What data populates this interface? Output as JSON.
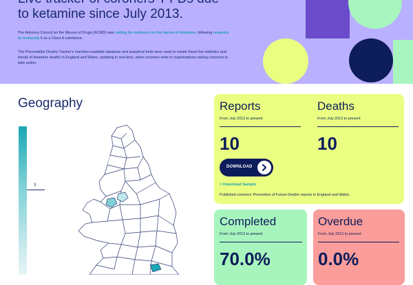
{
  "hero": {
    "title": "Live tracker of coroners' PFDs due to ketamine since July 2013.",
    "para1": {
      "part1": "The Advisory Council on the Misuse of Drugs (ACMD) was ",
      "link1": "calling for evidence on the harms of ketamine",
      "part2": ", following ",
      "link2": "requests to reclassify",
      "part3": " it as a Class A substance."
    },
    "para2": "The Preventable Deaths Tracker's machine-readable database and analytical tools were used to create these live statistics and trends of ketamine deaths in England and Wales, updating in real-time, when coroners write to organisations raising concerns to take action."
  },
  "geography": {
    "title": "Geography",
    "legend_max_label": "3"
  },
  "cards": {
    "reports": {
      "label": "Reports",
      "sub": "From July 2013 to present",
      "value": "10"
    },
    "deaths": {
      "label": "Deaths",
      "sub": "From July 2013 to present",
      "value": "10"
    },
    "download_label": "DOWNLOAD",
    "download_sample": "> Download Sample",
    "note": "Published coroners' Prevention of Future Deaths reports in England and Wales.",
    "completed": {
      "label": "Completed",
      "sub": "From July 2013 to present",
      "value": "70.0%"
    },
    "overdue": {
      "label": "Overdue",
      "sub": "From July 2013 to present",
      "value": "0.0%"
    }
  },
  "colors": {
    "hero_bg": "#b9b0ff",
    "navy": "#0d1c5a",
    "teal_link": "#1b9db0",
    "card_yellow": "#eaff82",
    "card_green": "#a7f5bd",
    "card_red": "#fb9d9a"
  },
  "icons": {
    "download_arrow": "chevron-right-icon"
  }
}
